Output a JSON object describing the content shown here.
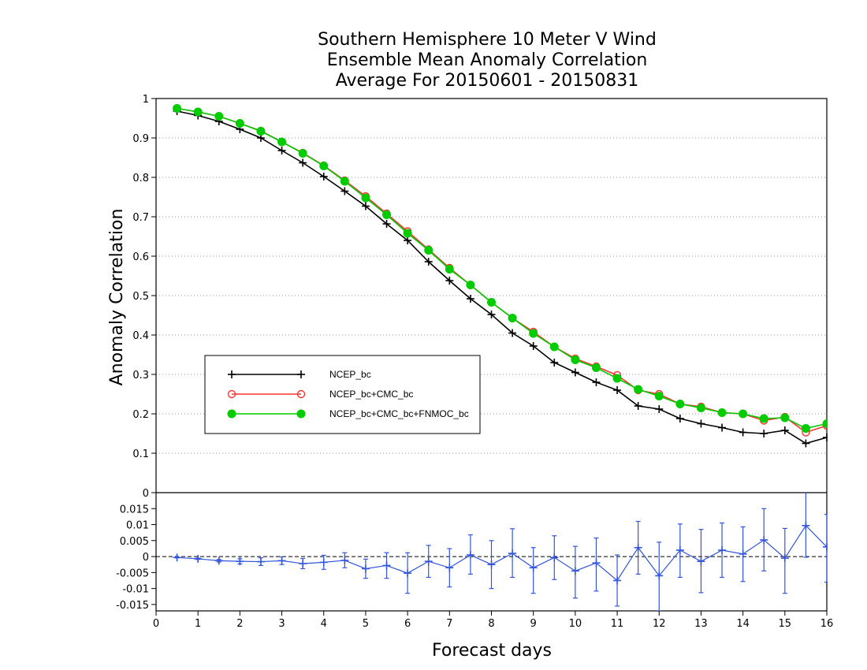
{
  "chart_data": [
    {
      "type": "line",
      "title": [
        "Southern Hemisphere 10 Meter V Wind",
        "Ensemble Mean Anomaly Correlation",
        "Average For 20150601 - 20150831"
      ],
      "ylabel": "Anomaly Correlation",
      "xlabel": "Forecast days",
      "xlim": [
        0,
        16
      ],
      "ylim": [
        0,
        1
      ],
      "x_ticks": [
        0,
        1,
        2,
        3,
        4,
        5,
        6,
        7,
        8,
        9,
        10,
        11,
        12,
        13,
        14,
        15,
        16
      ],
      "y_ticks": [
        0,
        0.1,
        0.2,
        0.3,
        0.4,
        0.5,
        0.6,
        0.7,
        0.8,
        0.9,
        1
      ],
      "grid": "horizontal dotted",
      "legend_position": "lower-left",
      "x": [
        0.5,
        1,
        1.5,
        2,
        2.5,
        3,
        3.5,
        4,
        4.5,
        5,
        5.5,
        6,
        6.5,
        7,
        7.5,
        8,
        8.5,
        9,
        9.5,
        10,
        10.5,
        11,
        11.5,
        12,
        12.5,
        13,
        13.5,
        14,
        14.5,
        15,
        15.5,
        16
      ],
      "series": [
        {
          "name": "NCEP_bc",
          "color": "#000000",
          "marker": "plus",
          "values": [
            0.968,
            0.957,
            0.942,
            0.922,
            0.9,
            0.868,
            0.837,
            0.802,
            0.765,
            0.727,
            0.682,
            0.64,
            0.586,
            0.538,
            0.492,
            0.452,
            0.405,
            0.372,
            0.33,
            0.305,
            0.28,
            0.26,
            0.22,
            0.212,
            0.188,
            0.175,
            0.165,
            0.153,
            0.15,
            0.158,
            0.125,
            0.14
          ]
        },
        {
          "name": "NCEP_bc+CMC_bc",
          "color": "#ff3333",
          "marker": "open-circle",
          "values": [
            0.975,
            0.966,
            0.955,
            0.937,
            0.918,
            0.89,
            0.862,
            0.83,
            0.792,
            0.752,
            0.708,
            0.663,
            0.617,
            0.57,
            0.527,
            0.483,
            0.443,
            0.408,
            0.37,
            0.34,
            0.32,
            0.298,
            0.26,
            0.25,
            0.225,
            0.218,
            0.203,
            0.2,
            0.183,
            0.192,
            0.153,
            0.17
          ]
        },
        {
          "name": "NCEP_bc+CMC_bc+FNMOC_bc",
          "color": "#00cc00",
          "marker": "filled-circle",
          "values": [
            0.975,
            0.966,
            0.955,
            0.937,
            0.917,
            0.89,
            0.861,
            0.829,
            0.79,
            0.748,
            0.705,
            0.658,
            0.615,
            0.567,
            0.527,
            0.483,
            0.443,
            0.404,
            0.37,
            0.337,
            0.317,
            0.29,
            0.262,
            0.245,
            0.225,
            0.215,
            0.203,
            0.2,
            0.188,
            0.19,
            0.163,
            0.175
          ]
        }
      ]
    },
    {
      "type": "line",
      "title": "",
      "xlabel": "Forecast days",
      "ylabel": "",
      "xlim": [
        0,
        16
      ],
      "ylim": [
        -0.017,
        0.02
      ],
      "y_ticks": [
        -0.015,
        -0.01,
        -0.005,
        0,
        0.005,
        0.01,
        0.015
      ],
      "y_tick_labels": [
        "-0.015",
        "-0.01",
        "-0.005",
        "0",
        "0.005",
        "0.01",
        "0.015"
      ],
      "zero_line": "dashed",
      "x": [
        0.5,
        1,
        1.5,
        2,
        2.5,
        3,
        3.5,
        4,
        4.5,
        5,
        5.5,
        6,
        6.5,
        7,
        7.5,
        8,
        8.5,
        9,
        9.5,
        10,
        10.5,
        11,
        11.5,
        12,
        12.5,
        13,
        13.5,
        14,
        14.5,
        15,
        15.5,
        16
      ],
      "series": [
        {
          "name": "",
          "color": "#3355dd",
          "marker": "plus",
          "values": [
            -0.0003,
            -0.0007,
            -0.0013,
            -0.0015,
            -0.0016,
            -0.0013,
            -0.0022,
            -0.0018,
            -0.0012,
            -0.0038,
            -0.0028,
            -0.0052,
            -0.0015,
            -0.0035,
            0.0005,
            -0.0025,
            0.001,
            -0.0035,
            -0.0003,
            -0.0045,
            -0.002,
            -0.0075,
            0.0028,
            -0.006,
            0.002,
            -0.0015,
            0.002,
            0.0008,
            0.0052,
            -0.0005,
            0.0097,
            0.003
          ],
          "error_low": [
            -0.0004,
            -0.0009,
            -0.0017,
            -0.0023,
            -0.0028,
            -0.0025,
            -0.0038,
            -0.004,
            -0.0035,
            -0.0068,
            -0.0068,
            -0.0115,
            -0.0065,
            -0.0095,
            -0.0055,
            -0.01,
            -0.0065,
            -0.0115,
            -0.0072,
            -0.013,
            -0.0108,
            -0.0155,
            -0.0055,
            -0.017,
            -0.0065,
            -0.0113,
            -0.0065,
            -0.0078,
            -0.0045,
            -0.0115,
            -0.0002,
            -0.008
          ],
          "error_high": [
            -0.0002,
            -0.0005,
            -0.0009,
            -0.0007,
            -0.0004,
            -0.0001,
            -0.0006,
            0.0004,
            0.0012,
            -0.0008,
            0.0012,
            0.0012,
            0.0035,
            0.0025,
            0.0068,
            0.005,
            0.0087,
            0.0028,
            0.0065,
            0.0032,
            0.0058,
            0.0005,
            0.011,
            0.0045,
            0.0102,
            0.0085,
            0.0105,
            0.0093,
            0.015,
            0.0088,
            0.0205,
            0.0132
          ]
        }
      ]
    }
  ]
}
